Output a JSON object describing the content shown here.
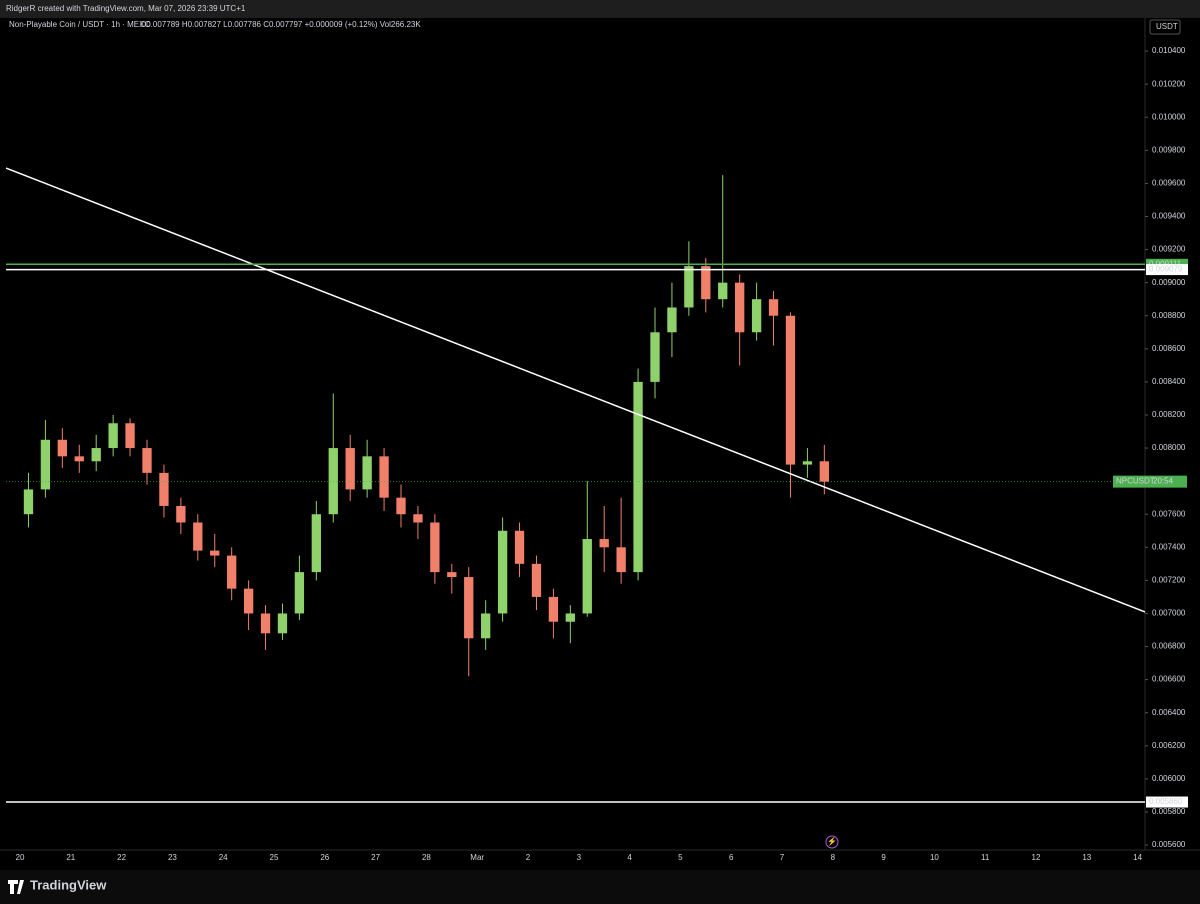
{
  "header": {
    "credit": "RidgerR created with TradingView.com, Mar 07, 2026 23:39 UTC+1"
  },
  "footer": {
    "brand": "TradingView"
  },
  "chart_data": {
    "type": "candlestick",
    "title": "Non-Playable Coin / USDT · 1h · MEXC",
    "readout": "O0.007789 H0.007827 L0.007786 C0.007797 +0.000009 (+0.12%) Vol266.23K",
    "currency": "USDT",
    "up_color": "#8fd16a",
    "down_color": "#f0806a",
    "open": [
      0.0076,
      0.00775,
      0.00805,
      0.00795,
      0.00792,
      0.008,
      0.00815,
      0.008,
      0.00785,
      0.00765,
      0.00755,
      0.00738,
      0.00735,
      0.00715,
      0.007,
      0.00688,
      0.007,
      0.00725,
      0.0076,
      0.008,
      0.00775,
      0.00795,
      0.0077,
      0.0076,
      0.00755,
      0.00725,
      0.00722,
      0.00685,
      0.007,
      0.0075,
      0.0073,
      0.0071,
      0.00695,
      0.007,
      0.00745,
      0.0074,
      0.00725,
      0.0084,
      0.0087,
      0.00885,
      0.0091,
      0.0089,
      0.009,
      0.0087,
      0.0089,
      0.0088,
      0.0079,
      0.00792
    ],
    "high": [
      0.00785,
      0.00817,
      0.00812,
      0.00802,
      0.00808,
      0.0082,
      0.00818,
      0.00805,
      0.0079,
      0.0077,
      0.0076,
      0.00748,
      0.0074,
      0.0072,
      0.00705,
      0.00706,
      0.00735,
      0.00768,
      0.00833,
      0.00808,
      0.00805,
      0.008,
      0.00778,
      0.00765,
      0.0076,
      0.0073,
      0.00728,
      0.00708,
      0.00758,
      0.00755,
      0.00735,
      0.00715,
      0.00705,
      0.0078,
      0.00765,
      0.0077,
      0.00848,
      0.00885,
      0.009,
      0.00925,
      0.00915,
      0.00965,
      0.00905,
      0.009,
      0.00895,
      0.00882,
      0.008,
      0.00802
    ],
    "low": [
      0.00752,
      0.0077,
      0.00788,
      0.00785,
      0.00786,
      0.00795,
      0.00795,
      0.00778,
      0.00758,
      0.00748,
      0.00732,
      0.00728,
      0.00708,
      0.0069,
      0.00678,
      0.00684,
      0.00696,
      0.0072,
      0.00755,
      0.00768,
      0.0077,
      0.00762,
      0.00752,
      0.00745,
      0.00718,
      0.00712,
      0.00662,
      0.00678,
      0.00695,
      0.00722,
      0.00702,
      0.00685,
      0.00682,
      0.00698,
      0.00725,
      0.00718,
      0.0072,
      0.0083,
      0.00855,
      0.0088,
      0.00882,
      0.00885,
      0.0085,
      0.00865,
      0.00862,
      0.0077,
      0.00782,
      0.00772
    ],
    "close": [
      0.00775,
      0.00805,
      0.00795,
      0.00792,
      0.008,
      0.00815,
      0.008,
      0.00785,
      0.00765,
      0.00755,
      0.00738,
      0.00735,
      0.00715,
      0.007,
      0.00688,
      0.007,
      0.00725,
      0.0076,
      0.008,
      0.00775,
      0.00795,
      0.0077,
      0.0076,
      0.00755,
      0.00725,
      0.00722,
      0.00685,
      0.007,
      0.0075,
      0.0073,
      0.0071,
      0.00695,
      0.007,
      0.00745,
      0.0074,
      0.00725,
      0.0084,
      0.0087,
      0.00885,
      0.0091,
      0.0089,
      0.009,
      0.0087,
      0.0089,
      0.0088,
      0.0079,
      0.00792,
      0.007797
    ],
    "last_price": {
      "symbol": "NPCUSDT",
      "countdown": "20:54",
      "color": "#4caf50"
    },
    "horizontal_lines": [
      {
        "value": 0.009111,
        "label": "0.009111",
        "color": "#4caf50"
      },
      {
        "value": 0.009079,
        "label": "0.009079",
        "color": "#ffffff"
      },
      {
        "value": 0.00586,
        "label": "0.005860",
        "color": "#ffffff"
      }
    ],
    "trendline": {
      "start": 0.009693,
      "end": 0.007009,
      "color": "#ffffff"
    },
    "xticks": [
      "20",
      "21",
      "22",
      "23",
      "24",
      "25",
      "26",
      "27",
      "28",
      "Mar",
      "2",
      "3",
      "4",
      "5",
      "6",
      "7",
      "8",
      "9",
      "10",
      "11",
      "12",
      "13",
      "14"
    ],
    "ylim": [
      0.00557,
      0.0106
    ],
    "yticks": [
      {
        "value": 0.0104,
        "label": "0.010400"
      },
      {
        "value": 0.0102,
        "label": "0.010200"
      },
      {
        "value": 0.01,
        "label": "0.010000"
      },
      {
        "value": 0.0098,
        "label": "0.009800"
      },
      {
        "value": 0.0096,
        "label": "0.009600"
      },
      {
        "value": 0.0094,
        "label": "0.009400"
      },
      {
        "value": 0.0092,
        "label": "0.009200"
      },
      {
        "value": 0.009,
        "label": "0.009000"
      },
      {
        "value": 0.0088,
        "label": "0.008800"
      },
      {
        "value": 0.0086,
        "label": "0.008600"
      },
      {
        "value": 0.0084,
        "label": "0.008400"
      },
      {
        "value": 0.0082,
        "label": "0.008200"
      },
      {
        "value": 0.008,
        "label": "0.008000"
      },
      {
        "value": 0.0076,
        "label": "0.007600"
      },
      {
        "value": 0.0074,
        "label": "0.007400"
      },
      {
        "value": 0.0072,
        "label": "0.007200"
      },
      {
        "value": 0.007,
        "label": "0.007000"
      },
      {
        "value": 0.0068,
        "label": "0.006800"
      },
      {
        "value": 0.0066,
        "label": "0.006600"
      },
      {
        "value": 0.0064,
        "label": "0.006400"
      },
      {
        "value": 0.0062,
        "label": "0.006200"
      },
      {
        "value": 0.006,
        "label": "0.006000"
      },
      {
        "value": 0.0058,
        "label": "0.005800"
      },
      {
        "value": 0.0056,
        "label": "0.005600"
      }
    ]
  }
}
